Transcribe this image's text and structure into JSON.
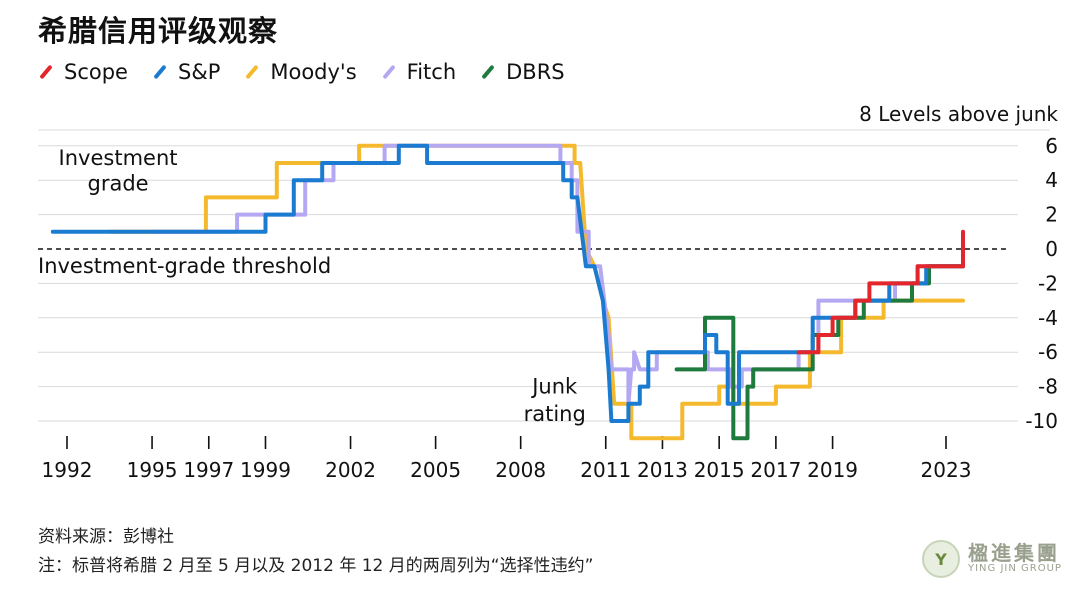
{
  "chart_data": {
    "type": "line",
    "title": "希腊信用评级观察",
    "ylabel_top": "8 Levels above junk",
    "ylim": [
      -11,
      8
    ],
    "yticks": [
      6,
      4,
      2,
      0,
      -2,
      -4,
      -6,
      -8,
      -10
    ],
    "xlim": [
      1990.6,
      2025.3
    ],
    "xticks": [
      {
        "value": 1992,
        "label": "1992"
      },
      {
        "value": 1995,
        "label": "1995"
      },
      {
        "value": 1997,
        "label": "1997"
      },
      {
        "value": 1999,
        "label": "1999"
      },
      {
        "value": 2002,
        "label": "2002"
      },
      {
        "value": 2005,
        "label": "2005"
      },
      {
        "value": 2008,
        "label": "2008"
      },
      {
        "value": 2011,
        "label": "2011"
      },
      {
        "value": 2013,
        "label": "2013"
      },
      {
        "value": 2015,
        "label": "2015"
      },
      {
        "value": 2017,
        "label": "2017"
      },
      {
        "value": 2019,
        "label": "2019"
      },
      {
        "value": 2023,
        "label": "2023"
      }
    ],
    "annotations": [
      {
        "text": "Investment",
        "year": 1993.8,
        "value": 5.3
      },
      {
        "text": "grade",
        "year": 1993.8,
        "value": 3.8
      },
      {
        "text": "Investment-grade threshold",
        "year": 1996.4,
        "value": -1.0
      },
      {
        "text": "Junk",
        "year": 2009.2,
        "value": -8.0
      },
      {
        "text": "rating",
        "year": 2009.2,
        "value": -9.6
      }
    ],
    "series": [
      {
        "name": "Scope",
        "color": "#e3262b",
        "points": [
          [
            2017.8,
            -6
          ],
          [
            2018.5,
            -6
          ],
          [
            2018.5,
            -5
          ],
          [
            2019.0,
            -5
          ],
          [
            2019.0,
            -4
          ],
          [
            2019.8,
            -4
          ],
          [
            2019.8,
            -3
          ],
          [
            2020.3,
            -3
          ],
          [
            2020.3,
            -2
          ],
          [
            2022.0,
            -2
          ],
          [
            2022.0,
            -1
          ],
          [
            2023.6,
            -1
          ],
          [
            2023.6,
            1
          ]
        ]
      },
      {
        "name": "S&P",
        "color": "#1a7bd0",
        "points": [
          [
            1991.5,
            1
          ],
          [
            1999.0,
            1
          ],
          [
            1999.0,
            2
          ],
          [
            2000.0,
            2
          ],
          [
            2000.0,
            4
          ],
          [
            2001.0,
            4
          ],
          [
            2001.0,
            5
          ],
          [
            2003.7,
            5
          ],
          [
            2003.7,
            6
          ],
          [
            2004.7,
            6
          ],
          [
            2004.7,
            5
          ],
          [
            2009.5,
            5
          ],
          [
            2009.5,
            4
          ],
          [
            2009.8,
            4
          ],
          [
            2009.8,
            3
          ],
          [
            2010.0,
            3
          ],
          [
            2010.3,
            -1
          ],
          [
            2010.6,
            -1
          ],
          [
            2010.9,
            -3
          ],
          [
            2011.1,
            -7
          ],
          [
            2011.2,
            -10
          ],
          [
            2011.8,
            -10
          ],
          [
            2011.8,
            -9
          ],
          [
            2012.2,
            -9
          ],
          [
            2012.2,
            -8
          ],
          [
            2012.5,
            -8
          ],
          [
            2012.5,
            -6
          ],
          [
            2014.5,
            -6
          ],
          [
            2014.5,
            -5
          ],
          [
            2014.9,
            -5
          ],
          [
            2014.9,
            -6
          ],
          [
            2015.3,
            -6
          ],
          [
            2015.3,
            -9
          ],
          [
            2015.7,
            -9
          ],
          [
            2015.7,
            -6
          ],
          [
            2018.3,
            -6
          ],
          [
            2018.3,
            -4
          ],
          [
            2019.8,
            -4
          ],
          [
            2019.8,
            -3
          ],
          [
            2021.0,
            -3
          ],
          [
            2021.0,
            -2
          ],
          [
            2022.3,
            -2
          ],
          [
            2022.3,
            -1
          ],
          [
            2023.6,
            -1
          ]
        ]
      },
      {
        "name": "Moody's",
        "color": "#f5b92e",
        "points": [
          [
            1993.5,
            1
          ],
          [
            1996.9,
            1
          ],
          [
            1996.9,
            3
          ],
          [
            1999.4,
            3
          ],
          [
            1999.4,
            5
          ],
          [
            2002.3,
            5
          ],
          [
            2002.3,
            6
          ],
          [
            2009.9,
            6
          ],
          [
            2009.9,
            5
          ],
          [
            2010.1,
            5
          ],
          [
            2010.3,
            0
          ],
          [
            2010.6,
            -1
          ],
          [
            2010.9,
            -3
          ],
          [
            2011.1,
            -4
          ],
          [
            2011.3,
            -9
          ],
          [
            2011.9,
            -9
          ],
          [
            2011.9,
            -11
          ],
          [
            2013.7,
            -11
          ],
          [
            2013.7,
            -9
          ],
          [
            2015.0,
            -9
          ],
          [
            2015.0,
            -8
          ],
          [
            2015.5,
            -8
          ],
          [
            2015.5,
            -9
          ],
          [
            2017.0,
            -9
          ],
          [
            2017.0,
            -8
          ],
          [
            2018.2,
            -8
          ],
          [
            2018.2,
            -6
          ],
          [
            2019.3,
            -6
          ],
          [
            2019.3,
            -4
          ],
          [
            2020.8,
            -4
          ],
          [
            2020.8,
            -3
          ],
          [
            2022.3,
            -3
          ],
          [
            2023.6,
            -3
          ]
        ]
      },
      {
        "name": "Fitch",
        "color": "#b5a8f2",
        "points": [
          [
            1995.0,
            1
          ],
          [
            1998.0,
            1
          ],
          [
            1998.0,
            2
          ],
          [
            2000.4,
            2
          ],
          [
            2000.4,
            4
          ],
          [
            2001.4,
            4
          ],
          [
            2001.4,
            5
          ],
          [
            2003.2,
            5
          ],
          [
            2003.2,
            6
          ],
          [
            2009.4,
            6
          ],
          [
            2009.4,
            5
          ],
          [
            2009.8,
            5
          ],
          [
            2009.8,
            4
          ],
          [
            2010.0,
            4
          ],
          [
            2010.0,
            1
          ],
          [
            2010.4,
            1
          ],
          [
            2010.4,
            -1
          ],
          [
            2010.8,
            -1
          ],
          [
            2011.1,
            -5
          ],
          [
            2011.2,
            -7
          ],
          [
            2011.8,
            -7
          ],
          [
            2011.8,
            -9
          ],
          [
            2011.9,
            -7
          ],
          [
            2012.0,
            -7
          ],
          [
            2012.0,
            -6
          ],
          [
            2012.2,
            -7
          ],
          [
            2012.8,
            -7
          ],
          [
            2012.8,
            -6
          ],
          [
            2014.6,
            -6
          ],
          [
            2014.6,
            -7
          ],
          [
            2015.4,
            -7
          ],
          [
            2015.4,
            -8
          ],
          [
            2015.8,
            -8
          ],
          [
            2015.8,
            -7
          ],
          [
            2017.8,
            -7
          ],
          [
            2017.8,
            -6
          ],
          [
            2018.5,
            -6
          ],
          [
            2018.5,
            -3
          ],
          [
            2021.2,
            -3
          ],
          [
            2021.2,
            -2
          ],
          [
            2022.0,
            -2
          ],
          [
            2022.0,
            -1
          ],
          [
            2023.6,
            -1
          ]
        ]
      },
      {
        "name": "DBRS",
        "color": "#1f7a3e",
        "points": [
          [
            2013.5,
            -7
          ],
          [
            2014.5,
            -7
          ],
          [
            2014.5,
            -4
          ],
          [
            2015.5,
            -4
          ],
          [
            2015.5,
            -11
          ],
          [
            2016.0,
            -11
          ],
          [
            2016.0,
            -8
          ],
          [
            2016.2,
            -8
          ],
          [
            2016.2,
            -7
          ],
          [
            2018.3,
            -7
          ],
          [
            2018.3,
            -5
          ],
          [
            2019.2,
            -5
          ],
          [
            2019.2,
            -4
          ],
          [
            2020.1,
            -4
          ],
          [
            2020.1,
            -3
          ],
          [
            2021.8,
            -3
          ],
          [
            2021.8,
            -2
          ],
          [
            2022.4,
            -2
          ],
          [
            2022.4,
            -1
          ],
          [
            2023.6,
            -1
          ]
        ]
      }
    ]
  },
  "footer": {
    "source": "资料来源：彭博社",
    "note": "注：标普将希腊 2 月至 5 月以及 2012 年 12 月的两周列为“选择性违约”"
  },
  "logo": {
    "initial": "Y",
    "name_cn": "楹進集團",
    "name_en": "YING JIN GROUP"
  }
}
